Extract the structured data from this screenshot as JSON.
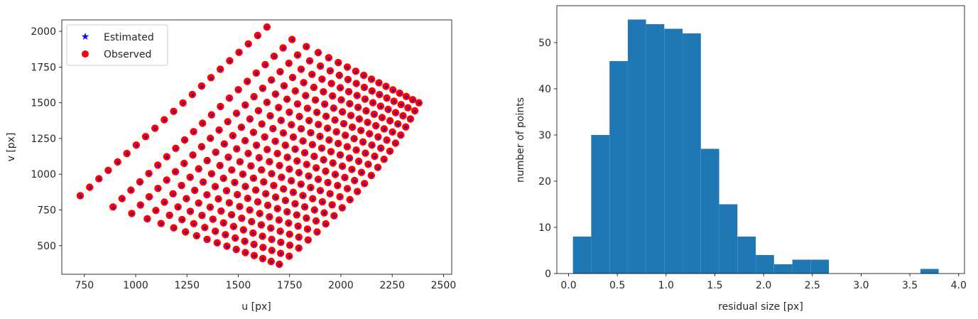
{
  "chart_data": [
    {
      "type": "scatter",
      "xlabel": "u [px]",
      "ylabel": "v [px]",
      "xlim": [
        640,
        2540
      ],
      "ylim": [
        300,
        2080
      ],
      "xticks": [
        750,
        1000,
        1250,
        1500,
        1750,
        2000,
        2250,
        2500
      ],
      "yticks": [
        500,
        750,
        1000,
        1250,
        1500,
        1750,
        2000
      ],
      "legend_position": "top-left",
      "grid": false,
      "series": [
        {
          "name": "Estimated",
          "marker": "star",
          "color": "#0000ff",
          "same_points_as": "Observed"
        },
        {
          "name": "Observed",
          "marker": "circle",
          "color": "#ff0000"
        }
      ],
      "grid_model": {
        "rows": 21,
        "cols": 17,
        "row_start": {
          "u": [
            730,
            1640
          ],
          "v": [
            850,
            2030
          ]
        },
        "row_end": {
          "u": [
            1700,
            2380
          ],
          "v": [
            370,
            1500
          ]
        },
        "curvature": 0.3
      }
    },
    {
      "type": "bar",
      "subtype": "histogram",
      "xlabel": "residual size [px]",
      "ylabel": "number of points",
      "xlim": [
        -0.12,
        4.06
      ],
      "ylim": [
        0,
        58
      ],
      "xticks": [
        0.0,
        0.5,
        1.0,
        1.5,
        2.0,
        2.5,
        3.0,
        3.5,
        4.0
      ],
      "yticks": [
        0,
        10,
        20,
        30,
        40,
        50
      ],
      "grid": false,
      "color": "#1f77b4",
      "bin_start": 0.045,
      "bin_width": 0.1875,
      "values": [
        8,
        30,
        46,
        55,
        54,
        53,
        52,
        27,
        15,
        8,
        4,
        2,
        3,
        3,
        0,
        0,
        0,
        0,
        0,
        1
      ]
    }
  ]
}
